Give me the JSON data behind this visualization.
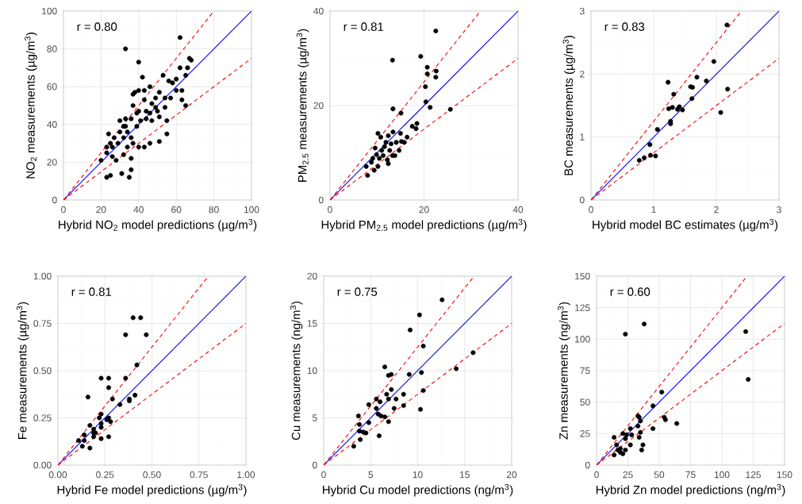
{
  "chart_data": [
    {
      "type": "scatter",
      "xlabel": "Hybrid NO$_{2}$ model predictions (µg/m$^{3}$)",
      "ylabel": "NO$_{2}$ measurements (µg/m$^{3}$)",
      "annotations": [
        "r = 0.80"
      ],
      "xlim": [
        0,
        100
      ],
      "ylim": [
        0,
        100
      ],
      "xticks": [
        0,
        20,
        40,
        60,
        80,
        100
      ],
      "yticks": [
        0,
        20,
        40,
        60,
        80,
        100
      ],
      "grid": true,
      "series": [
        {
          "marker": "circle",
          "color": "#000000",
          "x": [
            62,
            33,
            40,
            67,
            68,
            62,
            66,
            42,
            65,
            53,
            56,
            58,
            60,
            63,
            65,
            63,
            46,
            38,
            51,
            54,
            55,
            55,
            51,
            46,
            43,
            24,
            23,
            23,
            25,
            31,
            35,
            36,
            32,
            36,
            28,
            26,
            20,
            33,
            30,
            37,
            40,
            43,
            47,
            49,
            44,
            39,
            34,
            32,
            29,
            26,
            37,
            34,
            40,
            47,
            51,
            57,
            60,
            54,
            50,
            44,
            36,
            33,
            30,
            27,
            25,
            23,
            39,
            41,
            46,
            49,
            40,
            37,
            43,
            36,
            32
          ],
          "values": [
            86,
            80,
            73,
            75,
            74,
            70,
            70,
            65,
            66,
            66,
            63,
            62,
            64,
            58,
            50,
            53,
            60,
            57,
            57,
            49,
            42,
            35,
            31,
            30,
            28,
            35,
            28,
            12,
            13,
            14,
            12,
            16,
            24,
            22,
            21,
            23,
            21,
            43,
            42,
            50,
            47,
            53,
            51,
            49,
            43,
            39,
            36,
            33,
            30,
            28,
            30,
            28,
            28,
            42,
            44,
            54,
            58,
            54,
            47,
            47,
            43,
            39,
            36,
            33,
            30,
            25,
            46,
            42,
            46,
            54,
            58,
            56,
            58,
            33,
            39
          ]
        },
        {
          "type": "line",
          "color": "#0000ff",
          "x": [
            0,
            100
          ],
          "values": [
            0,
            100
          ]
        },
        {
          "type": "line",
          "color": "#ff0000",
          "line_style": "dashed",
          "x": [
            0,
            80
          ],
          "values": [
            0,
            100
          ]
        },
        {
          "type": "line",
          "color": "#ff0000",
          "line_style": "dashed",
          "x": [
            0,
            100
          ],
          "values": [
            0,
            75
          ]
        }
      ]
    },
    {
      "type": "scatter",
      "xlabel": "Hybrid PM$_{2.5}$ model predictions (µg/m$^{3}$)",
      "ylabel": "PM$_{2.5}$ measurements (µg/m$^{3}$)",
      "annotations": [
        "r = 0.81"
      ],
      "xlim": [
        0,
        40
      ],
      "ylim": [
        0,
        40
      ],
      "xticks": [
        0,
        20,
        40
      ],
      "yticks": [
        0,
        20,
        40
      ],
      "grid": true,
      "series": [
        {
          "marker": "circle",
          "color": "#000000",
          "x": [
            22.5,
            13.3,
            19.3,
            20.7,
            20.7,
            22.6,
            22.5,
            20.3,
            20.4,
            21.3,
            25.6,
            13.4,
            15.1,
            18.5,
            18.3,
            17.5,
            10.2,
            10.8,
            13.4,
            12.4,
            15.0,
            16.4,
            15.2,
            14.1,
            13.0,
            11.9,
            9.6,
            11.0,
            12.7,
            14.7,
            13.3,
            12.2,
            10.5,
            9.1,
            7.7,
            9.4,
            8.0,
            10.2,
            12.4,
            13.8,
            11.3,
            9.9,
            8.8,
            11.6,
            15.8
          ],
          "values": [
            35.8,
            29.6,
            30.4,
            28.1,
            26.7,
            27.3,
            26.0,
            24.0,
            20.8,
            19.6,
            19.2,
            19.3,
            18.4,
            16.2,
            15.1,
            15.6,
            14.1,
            13.3,
            14.4,
            13.6,
            14.1,
            13.3,
            12.4,
            12.2,
            11.9,
            12.2,
            11.0,
            10.5,
            10.5,
            10.5,
            9.4,
            8.5,
            8.8,
            8.8,
            7.1,
            6.3,
            5.2,
            7.1,
            7.7,
            9.4,
            9.4,
            9.6,
            8.0,
            11.3,
            12.2
          ]
        },
        {
          "type": "line",
          "color": "#0000ff",
          "x": [
            0,
            40
          ],
          "values": [
            0,
            40
          ]
        },
        {
          "type": "line",
          "color": "#ff0000",
          "line_style": "dashed",
          "x": [
            0,
            32
          ],
          "values": [
            0,
            40
          ]
        },
        {
          "type": "line",
          "color": "#ff0000",
          "line_style": "dashed",
          "x": [
            0,
            40
          ],
          "values": [
            0,
            30
          ]
        }
      ]
    },
    {
      "type": "scatter",
      "xlabel": "Hybrid model BC estimates (µg/m$^{3}$)",
      "ylabel": "BC measurements (µg/m$^{3}$)",
      "annotations": [
        "r = 0.83"
      ],
      "xlim": [
        0,
        3
      ],
      "ylim": [
        0,
        3
      ],
      "xticks": [
        0,
        1,
        2,
        3
      ],
      "yticks": [
        0,
        1,
        2,
        3
      ],
      "grid": true,
      "series": [
        {
          "marker": "circle",
          "color": "#000000",
          "x": [
            2.17,
            1.96,
            1.69,
            1.84,
            1.23,
            1.59,
            1.62,
            2.18,
            1.32,
            1.61,
            1.24,
            1.3,
            1.41,
            1.38,
            1.46,
            2.07,
            1.27,
            1.27,
            1.06,
            0.94,
            0.77,
            0.85,
            0.95,
            1.03
          ],
          "values": [
            2.78,
            2.2,
            1.95,
            1.89,
            1.87,
            1.8,
            1.79,
            1.76,
            1.68,
            1.61,
            1.45,
            1.47,
            1.48,
            1.44,
            1.43,
            1.39,
            1.25,
            1.21,
            1.12,
            0.88,
            0.63,
            0.67,
            0.71,
            0.7
          ]
        },
        {
          "type": "line",
          "color": "#0000ff",
          "x": [
            0,
            3
          ],
          "values": [
            0,
            3
          ]
        },
        {
          "type": "line",
          "color": "#ff0000",
          "line_style": "dashed",
          "x": [
            0,
            2.4
          ],
          "values": [
            0,
            3
          ]
        },
        {
          "type": "line",
          "color": "#ff0000",
          "line_style": "dashed",
          "x": [
            0,
            3
          ],
          "values": [
            0,
            2.25
          ]
        }
      ]
    },
    {
      "type": "scatter",
      "xlabel": "Hybrid Fe model predictions (µg/m$^{3}$)",
      "ylabel": "Fe measurements (µg/m$^{3}$)",
      "annotations": [
        "r = 0.81"
      ],
      "xlim": [
        0,
        1
      ],
      "ylim": [
        0,
        1
      ],
      "xticks": [
        {
          "value": 0,
          "label": "0.00"
        },
        {
          "value": 0.25,
          "label": "0.25"
        },
        {
          "value": 0.5,
          "label": "0.50"
        },
        {
          "value": 0.75,
          "label": "0.75"
        },
        {
          "value": 1,
          "label": "1.00"
        }
      ],
      "yticks": [
        {
          "value": 0,
          "label": "0.00"
        },
        {
          "value": 0.25,
          "label": "0.25"
        },
        {
          "value": 0.5,
          "label": "0.50"
        },
        {
          "value": 0.75,
          "label": "0.75"
        },
        {
          "value": 1,
          "label": "1.00"
        }
      ],
      "grid": true,
      "series": [
        {
          "marker": "circle",
          "color": "#000000",
          "x": [
            0.4,
            0.44,
            0.36,
            0.47,
            0.42,
            0.23,
            0.27,
            0.36,
            0.27,
            0.16,
            0.29,
            0.38,
            0.41,
            0.38,
            0.33,
            0.23,
            0.22,
            0.27,
            0.28,
            0.26,
            0.17,
            0.19,
            0.23,
            0.2,
            0.14,
            0.19,
            0.11,
            0.14,
            0.13,
            0.17,
            0.23,
            0.27,
            0.23,
            0.19
          ],
          "values": [
            0.78,
            0.78,
            0.69,
            0.69,
            0.53,
            0.46,
            0.46,
            0.46,
            0.41,
            0.36,
            0.35,
            0.35,
            0.37,
            0.34,
            0.32,
            0.27,
            0.25,
            0.25,
            0.23,
            0.24,
            0.21,
            0.19,
            0.2,
            0.17,
            0.16,
            0.17,
            0.13,
            0.13,
            0.1,
            0.09,
            0.14,
            0.15,
            0.22,
            0.15
          ]
        },
        {
          "type": "line",
          "color": "#0000ff",
          "x": [
            0,
            1
          ],
          "values": [
            0,
            1
          ]
        },
        {
          "type": "line",
          "color": "#ff0000",
          "line_style": "dashed",
          "x": [
            0,
            0.8
          ],
          "values": [
            0,
            1
          ]
        },
        {
          "type": "line",
          "color": "#ff0000",
          "line_style": "dashed",
          "x": [
            0,
            1
          ],
          "values": [
            0,
            0.75
          ]
        }
      ]
    },
    {
      "type": "scatter",
      "xlabel": "Hybrid Cu model predictions (ng/m$^{3}$)",
      "ylabel": "Cu measurements (ng/m$^{3}$)",
      "annotations": [
        "r = 0.75"
      ],
      "xlim": [
        0,
        20
      ],
      "ylim": [
        0,
        20
      ],
      "xticks": [
        0,
        5,
        10,
        15,
        20
      ],
      "yticks": [
        0,
        5,
        10,
        15,
        20
      ],
      "grid": true,
      "series": [
        {
          "marker": "circle",
          "color": "#000000",
          "x": [
            12.6,
            10.2,
            9.2,
            10.6,
            15.9,
            14.1,
            6.5,
            6.9,
            7.2,
            9.1,
            10.4,
            7.2,
            6.7,
            8.5,
            10.6,
            7.7,
            6.9,
            5.6,
            6.0,
            4.8,
            5.6,
            7.5,
            8.5,
            10.3,
            5.8,
            6.1,
            6.5,
            6.9,
            3.7,
            3.8,
            4.8,
            3.8,
            4.2,
            4.5,
            5.9,
            3.9,
            3.2
          ],
          "values": [
            17.5,
            15.9,
            14.3,
            12.6,
            11.9,
            10.2,
            10.4,
            9.5,
            9.6,
            9.6,
            9.8,
            8.0,
            7.5,
            7.5,
            7.9,
            7.0,
            7.0,
            7.0,
            6.7,
            6.4,
            6.0,
            6.0,
            6.3,
            5.9,
            5.4,
            5.2,
            5.1,
            4.6,
            5.2,
            4.3,
            4.5,
            3.6,
            3.5,
            3.4,
            3.1,
            2.7,
            2.0
          ]
        },
        {
          "type": "line",
          "color": "#0000ff",
          "x": [
            0,
            20
          ],
          "values": [
            0,
            20
          ]
        },
        {
          "type": "line",
          "color": "#ff0000",
          "line_style": "dashed",
          "x": [
            0,
            16
          ],
          "values": [
            0,
            20
          ]
        },
        {
          "type": "line",
          "color": "#ff0000",
          "line_style": "dashed",
          "x": [
            0,
            20
          ],
          "values": [
            0,
            15
          ]
        }
      ]
    },
    {
      "type": "scatter",
      "xlabel": "Hybrid Zn model predictions (ng/m$^{3}$)",
      "ylabel": "Zn measurements (ng/m$^{3}$)",
      "annotations": [
        "r = 0.60"
      ],
      "xlim": [
        0,
        150
      ],
      "ylim": [
        0,
        150
      ],
      "xticks": [
        0,
        25,
        50,
        75,
        100,
        125,
        150
      ],
      "yticks": [
        0,
        25,
        50,
        75,
        100,
        125,
        150
      ],
      "grid": true,
      "series": [
        {
          "marker": "circle",
          "color": "#000000",
          "x": [
            38,
            23,
            119,
            121,
            52,
            45,
            33,
            34,
            35,
            54,
            55,
            64,
            45,
            33,
            27,
            21,
            24,
            28,
            35,
            23,
            27,
            34,
            14,
            16,
            19,
            23,
            37,
            36,
            14,
            19,
            21,
            17
          ],
          "values": [
            112,
            104,
            106,
            68,
            58,
            47,
            39,
            38,
            35,
            38,
            36,
            33,
            29,
            31,
            29,
            25,
            24,
            24,
            26,
            21,
            16,
            22,
            22,
            16,
            13,
            12,
            16,
            12,
            8,
            10,
            9,
            12
          ]
        },
        {
          "type": "line",
          "color": "#0000ff",
          "x": [
            0,
            150
          ],
          "values": [
            0,
            150
          ]
        },
        {
          "type": "line",
          "color": "#ff0000",
          "line_style": "dashed",
          "x": [
            0,
            120
          ],
          "values": [
            0,
            150
          ]
        },
        {
          "type": "line",
          "color": "#ff0000",
          "line_style": "dashed",
          "x": [
            0,
            150
          ],
          "values": [
            0,
            112.5
          ]
        }
      ]
    }
  ]
}
